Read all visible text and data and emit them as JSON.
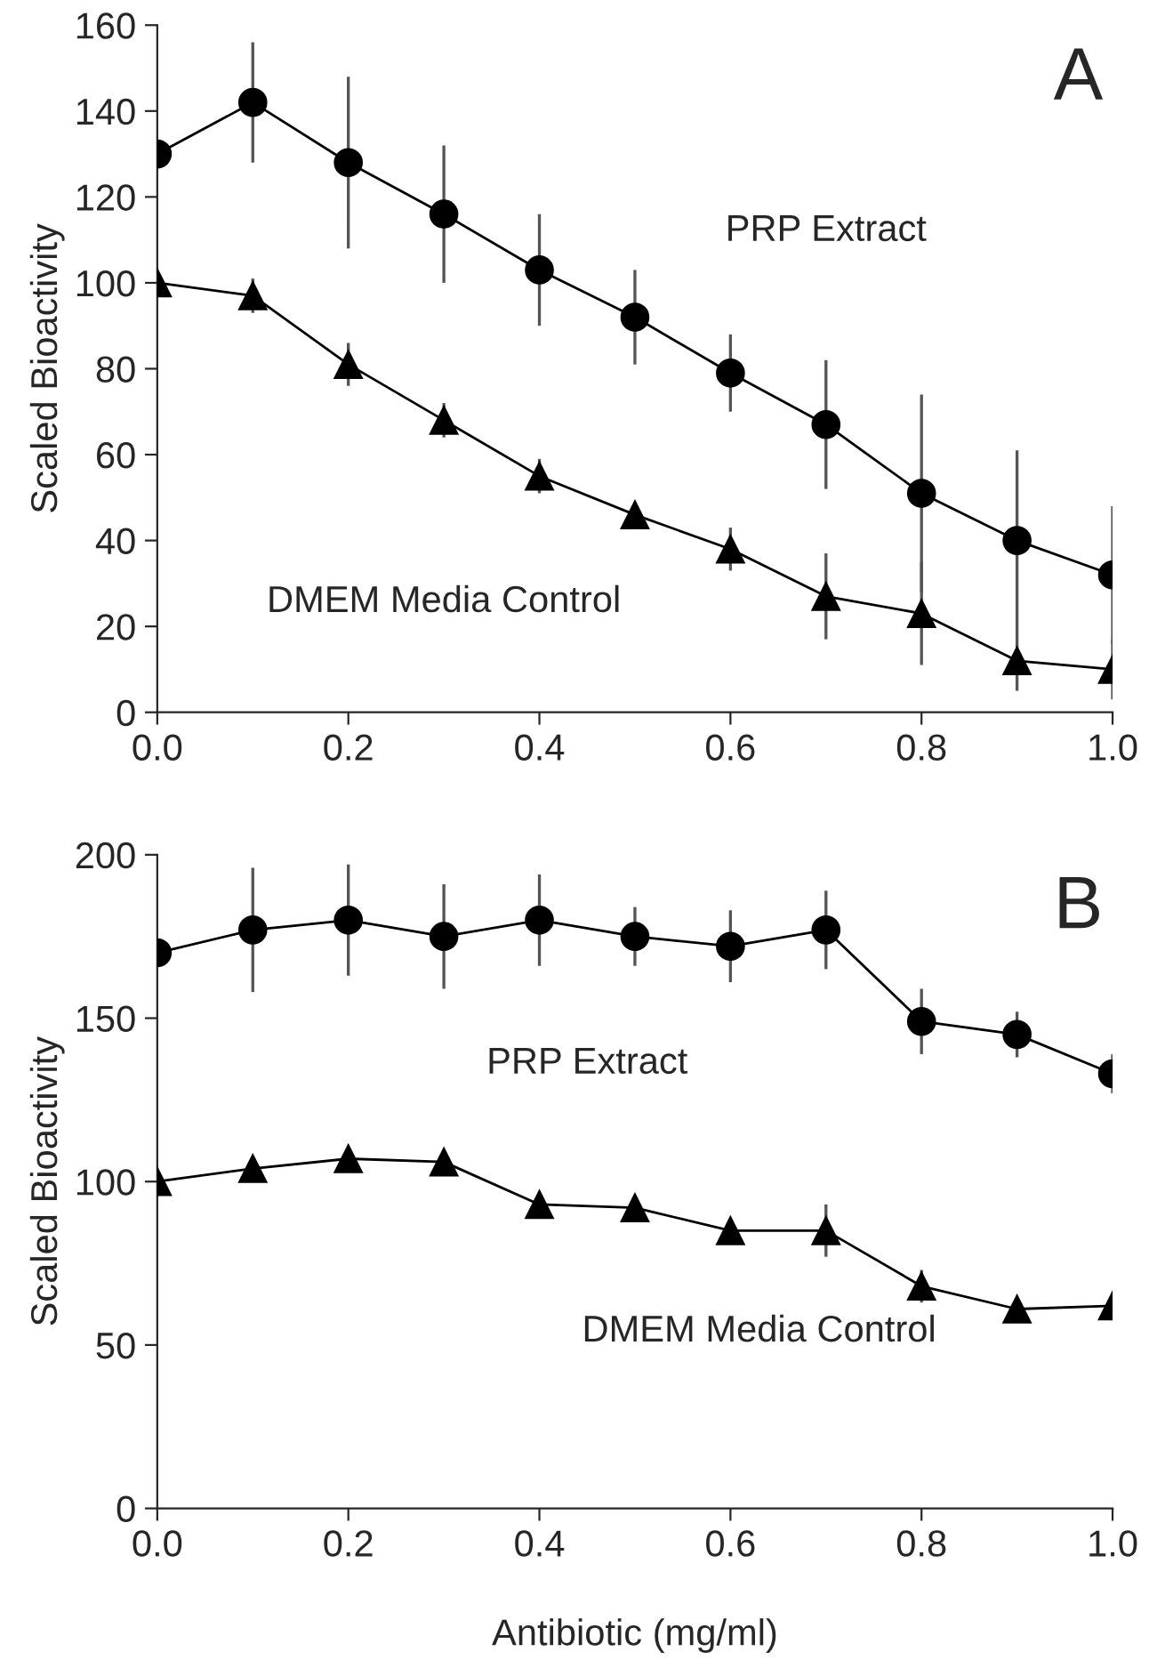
{
  "chart_data": [
    {
      "type": "line",
      "ylabel": "Scaled Bioactivity",
      "annotations": [
        "A"
      ],
      "x": [
        0.0,
        0.1,
        0.2,
        0.3,
        0.4,
        0.5,
        0.6,
        0.7,
        0.8,
        0.9,
        1.0
      ],
      "xlim": [
        0,
        1
      ],
      "xticks": [
        {
          "value": 0,
          "label": "0.0"
        },
        {
          "value": 0.2,
          "label": "0.2"
        },
        {
          "value": 0.4,
          "label": "0.4"
        },
        {
          "value": 0.6,
          "label": "0.6"
        },
        {
          "value": 0.8,
          "label": "0.8"
        },
        {
          "value": 1,
          "label": "1.0"
        }
      ],
      "ylim": [
        0,
        160
      ],
      "yticks": [
        0,
        20,
        40,
        60,
        80,
        100,
        120,
        140,
        160
      ],
      "grid": false,
      "legend": false,
      "line_style": "solid",
      "series": [
        {
          "name": "PRP Extract",
          "color": "#000000",
          "marker": "circle",
          "values": [
            130,
            142,
            128,
            116,
            103,
            92,
            79,
            67,
            51,
            40,
            32
          ],
          "errors": [
            null,
            14,
            20,
            16,
            13,
            11,
            9,
            15,
            23,
            21,
            16
          ]
        },
        {
          "name": "DMEM Media Control",
          "color": "#000000",
          "marker": "triangle",
          "values": [
            100,
            97,
            81,
            68,
            55,
            46,
            38,
            27,
            23,
            12,
            10
          ],
          "errors": [
            null,
            4,
            5,
            4,
            4,
            null,
            5,
            10,
            12,
            7,
            7
          ]
        }
      ]
    },
    {
      "type": "line",
      "ylabel": "Scaled Bioactivity",
      "xlabel": "Antibiotic (mg/ml)",
      "annotations": [
        "B"
      ],
      "x": [
        0.0,
        0.1,
        0.2,
        0.3,
        0.4,
        0.5,
        0.6,
        0.7,
        0.8,
        0.9,
        1.0
      ],
      "xlim": [
        0,
        1
      ],
      "xticks": [
        {
          "value": 0,
          "label": "0.0"
        },
        {
          "value": 0.2,
          "label": "0.2"
        },
        {
          "value": 0.4,
          "label": "0.4"
        },
        {
          "value": 0.6,
          "label": "0.6"
        },
        {
          "value": 0.8,
          "label": "0.8"
        },
        {
          "value": 1,
          "label": "1.0"
        }
      ],
      "ylim": [
        0,
        200
      ],
      "yticks": [
        0,
        50,
        100,
        150,
        200
      ],
      "grid": false,
      "legend": false,
      "line_style": "solid",
      "series": [
        {
          "name": "PRP Extract",
          "color": "#000000",
          "marker": "circle",
          "values": [
            170,
            177,
            180,
            175,
            180,
            175,
            172,
            177,
            149,
            145,
            133
          ],
          "errors": [
            null,
            19,
            17,
            16,
            14,
            9,
            11,
            12,
            10,
            7,
            6
          ]
        },
        {
          "name": "DMEM Media Control",
          "color": "#000000",
          "marker": "triangle",
          "values": [
            100,
            104,
            107,
            106,
            93,
            92,
            85,
            85,
            68,
            61,
            62
          ],
          "errors": [
            null,
            null,
            null,
            3,
            null,
            3,
            null,
            8,
            5,
            null,
            null
          ]
        }
      ]
    }
  ]
}
